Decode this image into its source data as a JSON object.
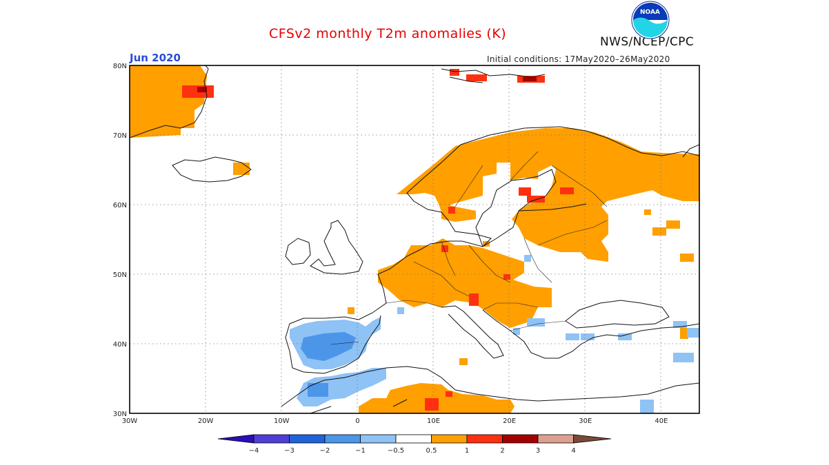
{
  "header": {
    "title": "CFSv2 monthly T2m anomalies (K)",
    "month": "Jun 2020",
    "initial_conditions": "Initial conditions: 17May2020–26May2020",
    "agency": "NWS/NCEP/CPC",
    "logo_text": "NOAA"
  },
  "axes": {
    "lat_labels": [
      "80N",
      "70N",
      "60N",
      "50N",
      "40N",
      "30N"
    ],
    "lon_labels": [
      "30W",
      "20W",
      "10W",
      "0",
      "10E",
      "20E",
      "30E",
      "40E"
    ],
    "lat_values": [
      80,
      70,
      60,
      50,
      40,
      30
    ],
    "lon_values": [
      -30,
      -20,
      -10,
      0,
      10,
      20,
      30,
      40
    ],
    "lon_range": [
      -30,
      45
    ],
    "lat_range": [
      30,
      80
    ]
  },
  "colorbar": {
    "labels": [
      "−4",
      "−3",
      "−2",
      "−1",
      "−0.5",
      "0.5",
      "1",
      "2",
      "3",
      "4"
    ],
    "colors": [
      "#2a0fb8",
      "#4f3fd6",
      "#1f63d9",
      "#4c96ea",
      "#8fc2f5",
      "#ffffff",
      "#ff9f00",
      "#ff3010",
      "#a30000",
      "#dca090",
      "#7a4a38"
    ]
  },
  "colors": {
    "warm_05_1": "#ff9f00",
    "warm_1_2": "#ff3010",
    "warm_2_3": "#a30000",
    "cool_m1_m05": "#8fc2f5",
    "cool_m2_m1": "#4c96ea"
  }
}
